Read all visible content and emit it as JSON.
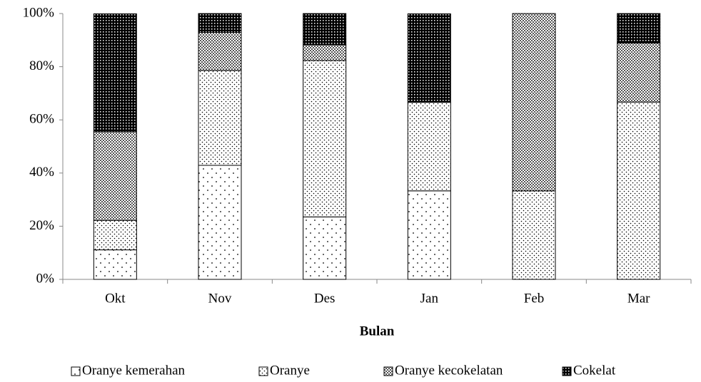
{
  "chart_data": {
    "type": "stacked_bar_100",
    "x_label": "Bulan",
    "categories": [
      "Okt",
      "Nov",
      "Des",
      "Jan",
      "Feb",
      "Mar"
    ],
    "series": [
      {
        "name": "Oranye kemerahan",
        "color": "#ffffff",
        "pattern": "sparse-dots",
        "values": [
          11.1,
          42.9,
          23.5,
          33.3,
          0,
          0
        ]
      },
      {
        "name": "Oranye",
        "color": "#ffffff",
        "pattern": "dense-dots",
        "values": [
          11.1,
          35.7,
          58.8,
          33.3,
          33.3,
          66.7
        ]
      },
      {
        "name": "Oranye kecokelatan",
        "color": "#ffffff",
        "pattern": "checker",
        "values": [
          33.3,
          14.3,
          5.9,
          0,
          66.7,
          22.2
        ]
      },
      {
        "name": "Cokelat",
        "color": "#ffffff",
        "pattern": "dark",
        "values": [
          44.4,
          7.1,
          11.8,
          33.3,
          0,
          11.1
        ]
      }
    ],
    "ylim": [
      0,
      100
    ],
    "yticks": [
      {
        "value": 0,
        "label": "0%"
      },
      {
        "value": 20,
        "label": "20%"
      },
      {
        "value": 40,
        "label": "40%"
      },
      {
        "value": 60,
        "label": "60%"
      },
      {
        "value": 80,
        "label": "80%"
      },
      {
        "value": 100,
        "label": "100%"
      }
    ],
    "legend": "bottom"
  }
}
